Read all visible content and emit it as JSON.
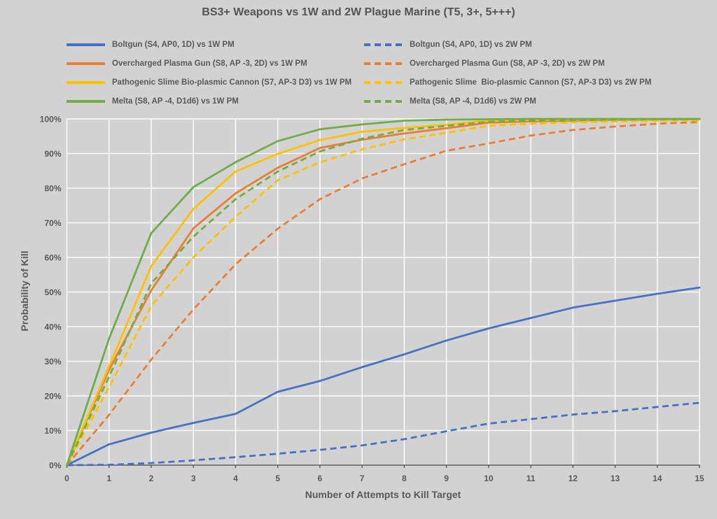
{
  "title": "BS3+ Weapons vs 1W and 2W Plague Marine (T5, 3+, 5+++)",
  "axes": {
    "x_title": "Number of Attempts to Kill Target",
    "y_title": "Probability of Kill",
    "x_ticks": [
      "0",
      "1",
      "2",
      "3",
      "4",
      "5",
      "6",
      "7",
      "8",
      "9",
      "10",
      "11",
      "12",
      "13",
      "14",
      "15"
    ],
    "y_ticks": [
      "0%",
      "10%",
      "20%",
      "30%",
      "40%",
      "50%",
      "60%",
      "70%",
      "80%",
      "90%",
      "100%"
    ]
  },
  "colors": {
    "blue": "#4472C4",
    "orange": "#ED7D31",
    "yellow": "#FFC000",
    "green": "#70AD47",
    "text": "#595959",
    "gridline": "#FBFBFB",
    "axis_line": "#595959",
    "background": "#D2D2D2"
  },
  "chart_data": {
    "type": "line",
    "title": "BS3+ Weapons vs 1W and 2W Plague Marine (T5, 3+, 5+++)",
    "xlabel": "Number of Attempts to Kill Target",
    "ylabel": "Probability of Kill",
    "x": [
      0,
      1,
      2,
      3,
      4,
      5,
      6,
      7,
      8,
      9,
      10,
      11,
      12,
      13,
      14,
      15
    ],
    "xlim": [
      0,
      15
    ],
    "ylim": [
      0,
      100
    ],
    "y_unit": "percent",
    "grid": true,
    "legend_position": "top",
    "series": [
      {
        "label": "Boltgun (S4, AP0, 1D) vs 1W PM",
        "color": "#4472C4",
        "style": "solid",
        "values": [
          0,
          6.0,
          9.4,
          12.2,
          14.8,
          21.2,
          24.3,
          28.3,
          32.0,
          36.0,
          39.5,
          42.5,
          45.5,
          47.5,
          49.5,
          51.3
        ]
      },
      {
        "label": "Boltgun (S4, AP0, 1D) vs 2W PM",
        "color": "#4472C4",
        "style": "dashed",
        "values": [
          0,
          0.1,
          0.6,
          1.4,
          2.3,
          3.3,
          4.4,
          5.7,
          7.5,
          9.8,
          12.0,
          13.3,
          14.6,
          15.6,
          16.8,
          18.0
        ]
      },
      {
        "label": "Overcharged Plasma Gun (S8, AP -3, 2D) vs 1W PM",
        "color": "#ED7D31",
        "style": "solid",
        "values": [
          0,
          27.5,
          50.5,
          68.4,
          78.5,
          85.9,
          91.6,
          94.0,
          95.8,
          97.3,
          98.9,
          99.3,
          99.5,
          99.7,
          99.8,
          99.9
        ]
      },
      {
        "label": "Overcharged Plasma Gun (S8, AP -3, 2D) vs 2W PM",
        "color": "#ED7D31",
        "style": "dashed",
        "values": [
          0,
          14.5,
          30.5,
          45.0,
          58.0,
          68.3,
          76.8,
          82.8,
          86.9,
          90.8,
          92.9,
          95.2,
          96.8,
          97.8,
          98.6,
          99.1
        ]
      },
      {
        "label": "Pathogenic Slime Bio-plasmic Cannon (S7, AP-3 D3) vs 1W PM",
        "color": "#FFC000",
        "style": "solid",
        "values": [
          0,
          28.5,
          57.5,
          74.0,
          84.8,
          89.9,
          93.9,
          96.3,
          97.4,
          98.3,
          99.5,
          99.7,
          99.8,
          99.9,
          99.9,
          100
        ]
      },
      {
        "label": "Pathogenic Slime  Bio-plasmic Cannon (S7, AP-3 D3) vs 2W PM",
        "color": "#FFC000",
        "style": "dashed",
        "values": [
          0,
          22.5,
          46.0,
          60.0,
          71.7,
          82.3,
          87.5,
          91.2,
          94.1,
          96.0,
          98.0,
          98.6,
          99.0,
          99.3,
          99.5,
          99.6
        ]
      },
      {
        "label": "Melta (S8, AP -4, D1d6) vs 1W PM",
        "color": "#70AD47",
        "style": "solid",
        "values": [
          0,
          36.5,
          67.0,
          80.3,
          87.5,
          93.6,
          97.0,
          98.4,
          99.5,
          99.8,
          99.9,
          100,
          100,
          100,
          100,
          100
        ]
      },
      {
        "label": "Melta (S8, AP -4, D1d6) vs 2W PM",
        "color": "#70AD47",
        "style": "dashed",
        "values": [
          0,
          25.5,
          52.5,
          66.0,
          76.8,
          84.8,
          90.6,
          94.3,
          96.8,
          98.0,
          99.2,
          99.5,
          99.7,
          99.8,
          99.9,
          99.9
        ]
      }
    ]
  }
}
